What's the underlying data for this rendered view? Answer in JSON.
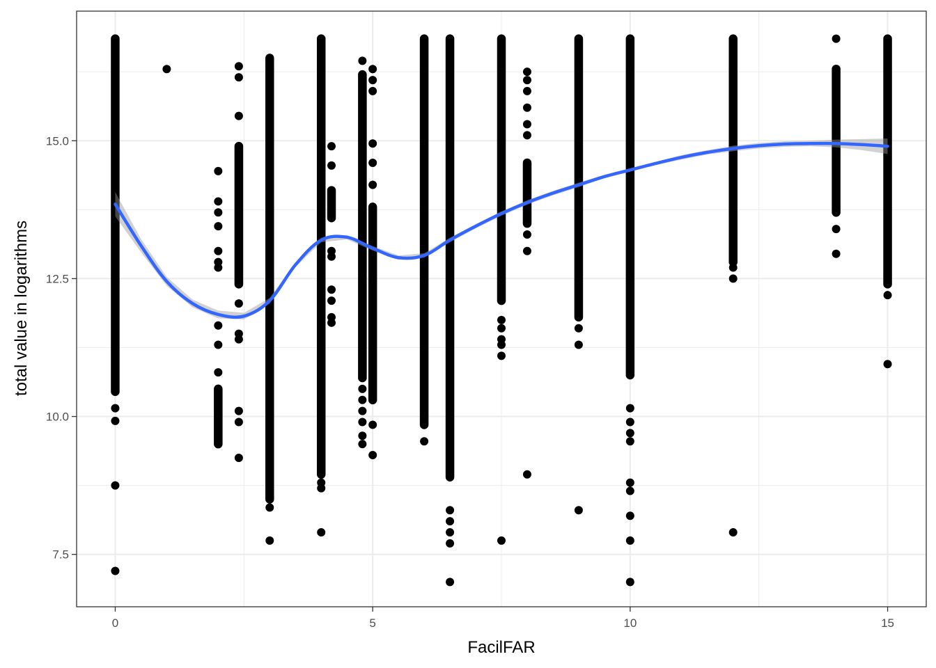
{
  "chart_data": {
    "type": "scatter",
    "title": "",
    "xlabel": "FacilFAR",
    "ylabel": "total value in logarithms",
    "xlim": [
      -0.75,
      15.75
    ],
    "ylim": [
      6.55,
      17.35
    ],
    "x_ticks": [
      0,
      5,
      10,
      15
    ],
    "x_tick_labels": [
      "0",
      "5",
      "10",
      "15"
    ],
    "y_ticks": [
      7.5,
      10.0,
      12.5,
      15.0
    ],
    "y_tick_labels": [
      "7.5",
      "10.0",
      "12.5",
      "15.0"
    ],
    "grid": true,
    "legend": "none",
    "colors": {
      "points": "#000000",
      "smooth": "#3366FF",
      "band": "#999999",
      "grid": "#ebebeb",
      "panel_border": "#333333"
    },
    "columns": [
      {
        "x": 0,
        "dense": [
          [
            10.45,
            16.85
          ]
        ],
        "extra": [
          10.15,
          9.92,
          8.75,
          7.2
        ]
      },
      {
        "x": 1,
        "dense": [],
        "extra": [
          16.3
        ]
      },
      {
        "x": 2,
        "dense": [
          [
            9.5,
            10.5
          ]
        ],
        "extra": [
          14.45,
          13.9,
          13.7,
          13.45,
          13.0,
          12.8,
          12.7,
          11.65,
          11.3,
          10.8
        ]
      },
      {
        "x": 2.4,
        "dense": [
          [
            12.4,
            14.9
          ]
        ],
        "extra": [
          16.35,
          16.15,
          15.45,
          12.05,
          11.5,
          11.4,
          10.1,
          9.9,
          9.25
        ]
      },
      {
        "x": 3,
        "dense": [
          [
            8.5,
            16.5
          ]
        ],
        "extra": [
          8.35,
          7.75
        ]
      },
      {
        "x": 4,
        "dense": [
          [
            8.95,
            16.85
          ]
        ],
        "extra": [
          8.8,
          8.7,
          7.9
        ]
      },
      {
        "x": 4.2,
        "dense": [
          [
            13.6,
            14.1
          ]
        ],
        "extra": [
          14.9,
          14.55,
          12.3,
          12.1,
          11.8,
          11.7,
          13.0,
          12.9
        ]
      },
      {
        "x": 4.8,
        "dense": [
          [
            10.7,
            16.2
          ]
        ],
        "extra": [
          16.45,
          16.2,
          10.5,
          10.3,
          10.1,
          9.9,
          9.65,
          9.5
        ]
      },
      {
        "x": 5,
        "dense": [
          [
            10.3,
            13.8
          ]
        ],
        "extra": [
          16.3,
          16.1,
          15.9,
          14.95,
          14.6,
          14.2,
          9.85,
          9.3
        ]
      },
      {
        "x": 6,
        "dense": [
          [
            9.85,
            16.85
          ]
        ],
        "extra": [
          9.55
        ]
      },
      {
        "x": 6.5,
        "dense": [
          [
            8.9,
            16.85
          ]
        ],
        "extra": [
          8.3,
          8.1,
          7.9,
          7.7,
          7.0
        ]
      },
      {
        "x": 7.5,
        "dense": [
          [
            12.1,
            16.85
          ]
        ],
        "extra": [
          11.75,
          11.6,
          11.4,
          11.3,
          11.1,
          7.75
        ]
      },
      {
        "x": 8,
        "dense": [
          [
            13.5,
            14.6
          ]
        ],
        "extra": [
          16.25,
          16.1,
          15.9,
          15.6,
          15.3,
          15.1,
          13.3,
          13.0,
          8.95
        ]
      },
      {
        "x": 9,
        "dense": [
          [
            11.8,
            16.85
          ]
        ],
        "extra": [
          11.6,
          11.3,
          8.3
        ]
      },
      {
        "x": 10,
        "dense": [
          [
            10.75,
            16.85
          ]
        ],
        "extra": [
          10.15,
          9.9,
          9.7,
          9.55,
          8.8,
          8.65,
          8.2,
          7.75,
          7.0
        ]
      },
      {
        "x": 12,
        "dense": [
          [
            12.8,
            16.85
          ]
        ],
        "extra": [
          12.7,
          12.5,
          7.9
        ]
      },
      {
        "x": 14,
        "dense": [
          [
            13.7,
            16.3
          ]
        ],
        "extra": [
          16.85,
          13.4,
          12.95
        ]
      },
      {
        "x": 15,
        "dense": [
          [
            12.4,
            16.85
          ]
        ],
        "extra": [
          12.2,
          10.95
        ]
      }
    ],
    "smooth": {
      "x": [
        0,
        0.5,
        1,
        1.5,
        2,
        2.5,
        3,
        3.5,
        4,
        4.5,
        5,
        5.5,
        6,
        6.5,
        7,
        7.5,
        8,
        8.5,
        9,
        9.5,
        10,
        10.5,
        11,
        11.5,
        12,
        12.5,
        13,
        13.5,
        14,
        14.5,
        15
      ],
      "y": [
        13.85,
        13.1,
        12.45,
        12.05,
        11.85,
        11.82,
        12.1,
        12.75,
        13.2,
        13.25,
        13.05,
        12.88,
        12.92,
        13.2,
        13.45,
        13.68,
        13.88,
        14.05,
        14.2,
        14.35,
        14.47,
        14.59,
        14.7,
        14.79,
        14.86,
        14.91,
        14.94,
        14.95,
        14.95,
        14.93,
        14.9
      ],
      "band_half_width": [
        0.22,
        0.12,
        0.08,
        0.07,
        0.07,
        0.06,
        0.05,
        0.04,
        0.04,
        0.04,
        0.04,
        0.04,
        0.04,
        0.04,
        0.04,
        0.04,
        0.04,
        0.04,
        0.04,
        0.03,
        0.03,
        0.03,
        0.04,
        0.04,
        0.05,
        0.05,
        0.05,
        0.05,
        0.07,
        0.1,
        0.14
      ]
    }
  }
}
